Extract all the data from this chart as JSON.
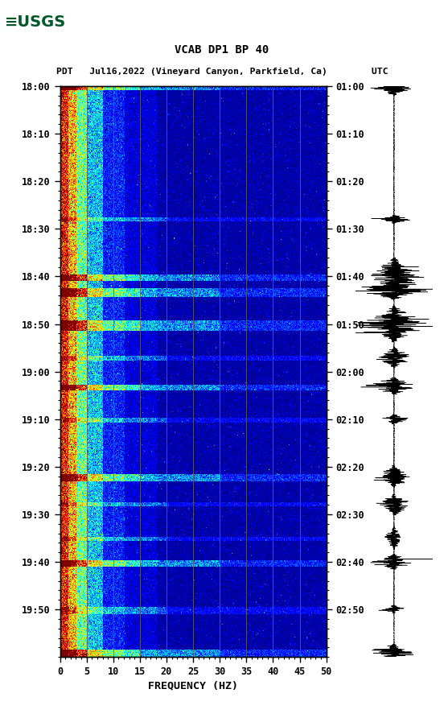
{
  "title_line1": "VCAB DP1 BP 40",
  "title_line2": "PDT   Jul16,2022 (Vineyard Canyon, Parkfield, Ca)        UTC",
  "xlabel": "FREQUENCY (HZ)",
  "freq_min": 0,
  "freq_max": 50,
  "ytick_pdt": [
    "18:00",
    "18:10",
    "18:20",
    "18:30",
    "18:40",
    "18:50",
    "19:00",
    "19:10",
    "19:20",
    "19:30",
    "19:40",
    "19:50"
  ],
  "ytick_utc": [
    "01:00",
    "01:10",
    "01:20",
    "01:30",
    "01:40",
    "01:50",
    "02:00",
    "02:10",
    "02:20",
    "02:30",
    "02:40",
    "02:50"
  ],
  "ytick_minutes": [
    0,
    10,
    20,
    30,
    40,
    50,
    60,
    70,
    80,
    90,
    100,
    110
  ],
  "xticks": [
    0,
    5,
    10,
    15,
    20,
    25,
    30,
    35,
    40,
    45,
    50
  ],
  "vert_lines_freq": [
    5,
    10,
    15,
    20,
    25,
    30,
    35,
    40,
    45
  ],
  "background_color": "#ffffff",
  "colormap": "jet",
  "random_seed": 42,
  "event_times_strong": [
    0,
    40,
    43,
    50,
    63,
    82,
    100,
    119
  ],
  "event_times_medium": [
    28,
    57,
    70,
    88,
    95,
    110
  ],
  "n_time": 600,
  "n_freq": 400,
  "time_total_min": 120
}
